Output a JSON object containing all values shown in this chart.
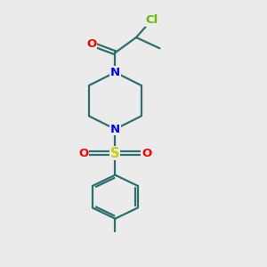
{
  "bg_color": "#ebebeb",
  "bond_color": "#2d6e6e",
  "bond_width": 1.6,
  "atom_colors": {
    "Cl": "#66bb00",
    "O": "#ff0000",
    "N": "#0000ff",
    "S": "#cccc00",
    "C": "#000000"
  },
  "font_size_atom": 9.5,
  "fig_size": [
    3.0,
    3.0
  ],
  "dpi": 100,
  "xlim": [
    0,
    10
  ],
  "ylim": [
    0,
    12
  ]
}
